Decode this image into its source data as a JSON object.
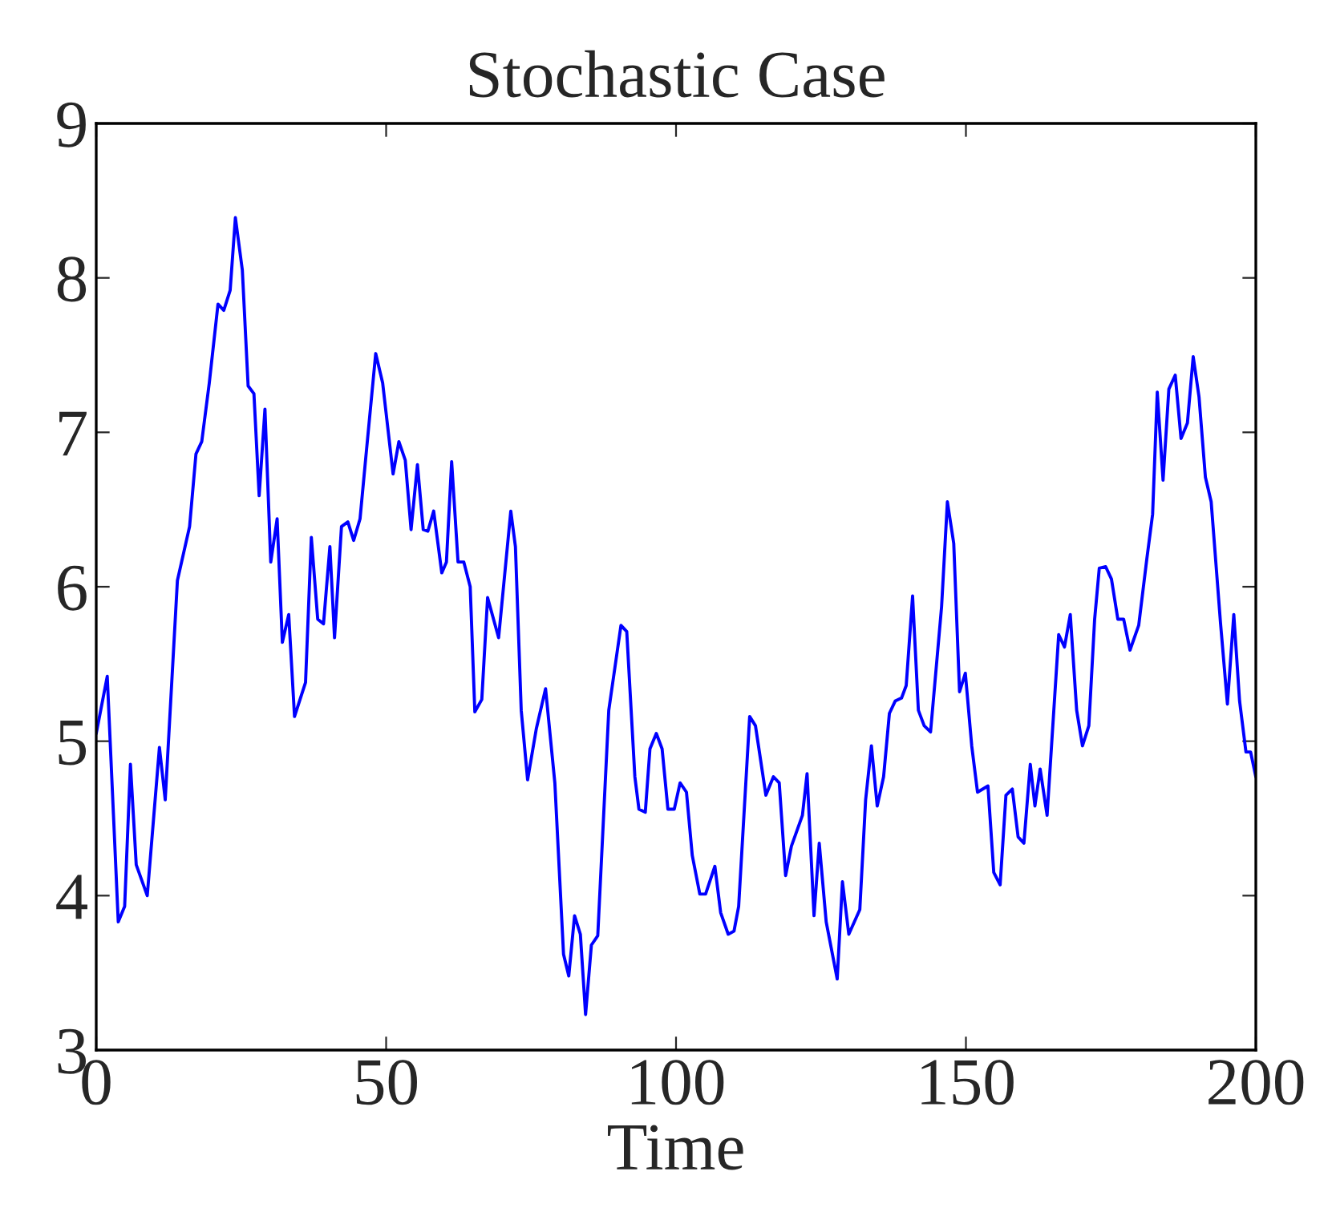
{
  "chart_data": {
    "type": "line",
    "title": "Stochastic Case",
    "xlabel": "Time",
    "xlim": [
      0,
      200
    ],
    "xticks": [
      0,
      50,
      100,
      150,
      200
    ],
    "ylim": [
      3,
      9
    ],
    "yticks": [
      3,
      4,
      5,
      6,
      7,
      8,
      9
    ],
    "grid": false,
    "legend": false,
    "marker": "none",
    "line_style": "solid",
    "series": [
      {
        "color": "#0000ff",
        "x": [
          0,
          1.9,
          3.8,
          4.9,
          5.9,
          6.9,
          8.8,
          10.9,
          11.9,
          14.0,
          16.1,
          17.2,
          18.2,
          19.5,
          21.0,
          22.0,
          23.1,
          24.0,
          25.2,
          26.2,
          27.2,
          28.1,
          29.1,
          30.1,
          31.2,
          32.1,
          33.2,
          34.2,
          36.1,
          37.1,
          38.2,
          39.2,
          40.3,
          41.1,
          42.3,
          43.4,
          44.4,
          45.5,
          46.5,
          48.2,
          49.4,
          51.2,
          52.2,
          53.3,
          54.3,
          55.4,
          56.4,
          57.2,
          58.2,
          59.6,
          60.4,
          61.3,
          62.4,
          63.4,
          64.5,
          65.3,
          66.5,
          67.5,
          69.4,
          71.5,
          72.3,
          73.3,
          74.4,
          75.9,
          77.5,
          79.1,
          80.6,
          81.5,
          82.5,
          83.5,
          84.4,
          85.4,
          86.5,
          88.4,
          90.5,
          91.5,
          92.9,
          93.6,
          94.7,
          95.5,
          96.6,
          97.6,
          98.6,
          99.7,
          100.7,
          101.8,
          102.8,
          104.1,
          105.1,
          106.7,
          107.7,
          109.0,
          110.0,
          110.8,
          112.7,
          113.7,
          115.5,
          116.8,
          117.8,
          118.9,
          119.9,
          121.8,
          122.6,
          123.8,
          124.7,
          125.9,
          127.8,
          128.7,
          129.8,
          131.7,
          132.7,
          133.7,
          134.7,
          135.8,
          136.8,
          137.8,
          138.9,
          139.7,
          140.8,
          141.8,
          142.8,
          143.9,
          145.8,
          146.8,
          147.9,
          148.9,
          149.9,
          151.0,
          152.0,
          153.8,
          154.8,
          155.9,
          156.9,
          158.0,
          159.0,
          160.0,
          161.1,
          161.9,
          162.8,
          164.0,
          164.9,
          166.0,
          167.0,
          168.0,
          169.1,
          170.1,
          171.2,
          172.2,
          173.0,
          174.1,
          175.1,
          176.2,
          177.2,
          178.3,
          179.8,
          181.2,
          182.2,
          183.0,
          184.0,
          185.0,
          186.1,
          187.1,
          188.2,
          189.2,
          190.2,
          191.3,
          192.3,
          193.9,
          195.1,
          196.2,
          197.2,
          198.3,
          199.1,
          200
        ],
        "values": [
          5.05,
          5.42,
          3.83,
          3.93,
          4.85,
          4.2,
          4.0,
          4.96,
          4.62,
          6.04,
          6.39,
          6.86,
          6.94,
          7.32,
          7.83,
          7.79,
          7.92,
          8.39,
          8.05,
          7.3,
          7.25,
          6.59,
          7.15,
          6.16,
          6.44,
          5.64,
          5.82,
          5.16,
          5.38,
          6.32,
          5.79,
          5.76,
          6.26,
          5.67,
          6.39,
          6.42,
          6.3,
          6.44,
          6.84,
          7.51,
          7.32,
          6.73,
          6.94,
          6.82,
          6.37,
          6.79,
          6.37,
          6.36,
          6.49,
          6.09,
          6.16,
          6.81,
          6.16,
          6.16,
          6.0,
          5.19,
          5.27,
          5.93,
          5.67,
          6.49,
          6.26,
          5.2,
          4.75,
          5.08,
          5.34,
          4.73,
          3.62,
          3.48,
          3.87,
          3.75,
          3.23,
          3.68,
          3.74,
          5.2,
          5.75,
          5.71,
          4.77,
          4.56,
          4.54,
          4.95,
          5.05,
          4.95,
          4.56,
          4.56,
          4.73,
          4.67,
          4.26,
          4.01,
          4.01,
          4.19,
          3.89,
          3.75,
          3.77,
          3.93,
          5.16,
          5.1,
          4.65,
          4.77,
          4.73,
          4.13,
          4.32,
          4.52,
          4.79,
          3.87,
          4.34,
          3.83,
          3.46,
          4.09,
          3.75,
          3.91,
          4.62,
          4.97,
          4.58,
          4.77,
          5.18,
          5.26,
          5.28,
          5.36,
          5.94,
          5.2,
          5.1,
          5.06,
          5.87,
          6.55,
          6.28,
          5.32,
          5.44,
          4.97,
          4.67,
          4.71,
          4.15,
          4.07,
          4.65,
          4.69,
          4.38,
          4.34,
          4.85,
          4.58,
          4.82,
          4.52,
          5.05,
          5.69,
          5.61,
          5.82,
          5.2,
          4.97,
          5.1,
          5.79,
          6.12,
          6.13,
          6.05,
          5.79,
          5.79,
          5.59,
          5.75,
          6.18,
          6.47,
          7.26,
          6.69,
          7.28,
          7.37,
          6.96,
          7.06,
          7.49,
          7.23,
          6.71,
          6.55,
          5.77,
          5.24,
          5.82,
          5.26,
          4.93,
          4.93,
          4.77
        ]
      }
    ]
  }
}
